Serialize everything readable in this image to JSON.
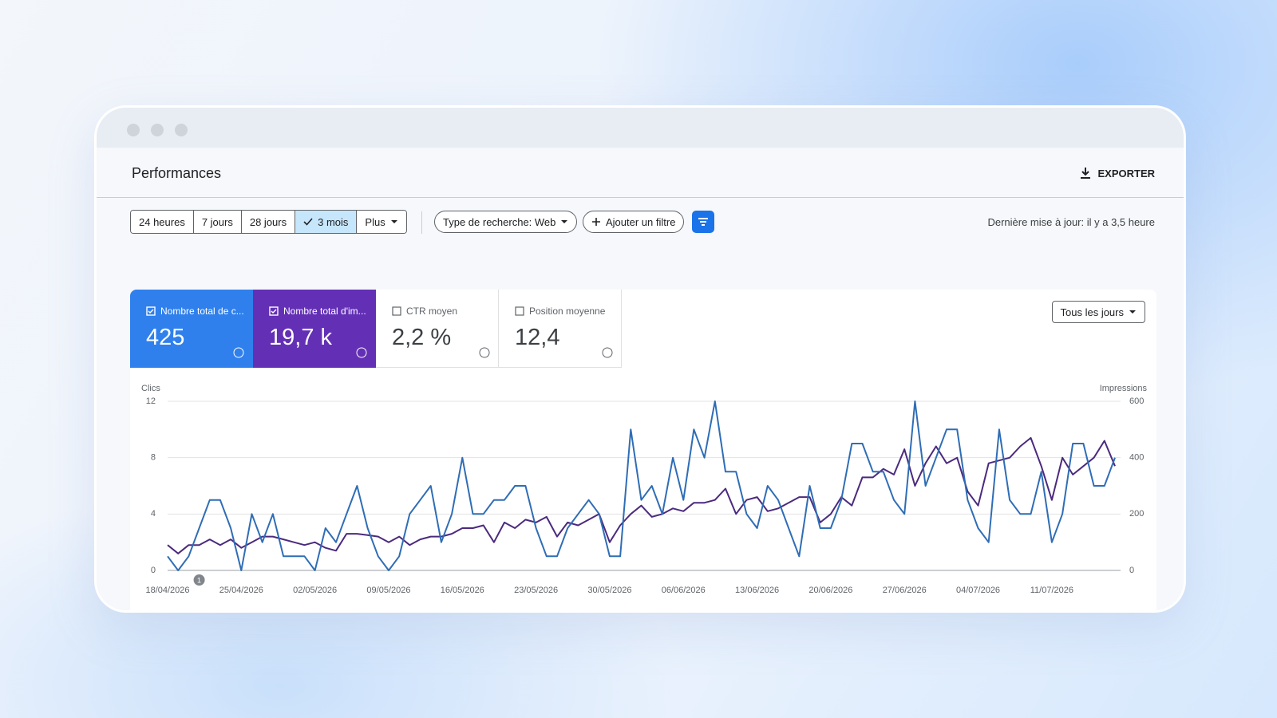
{
  "header": {
    "title": "Performances",
    "export": "EXPORTER"
  },
  "toolbar": {
    "ranges": [
      "24 heures",
      "7 jours",
      "28 jours",
      "3 mois",
      "Plus"
    ],
    "search_type": "Type de recherche: Web",
    "add_filter": "Ajouter un filtre",
    "last_update": "Dernière mise à jour: il y a 3,5 heure"
  },
  "metrics": [
    {
      "label": "Nombre total de c...",
      "value": "425"
    },
    {
      "label": "Nombre total d'im...",
      "value": "19,7 k"
    },
    {
      "label": "CTR moyen",
      "value": "2,2 %"
    },
    {
      "label": "Position moyenne",
      "value": "12,4"
    }
  ],
  "granularity": "Tous les jours",
  "chart_data": {
    "type": "line",
    "categories": [
      "18/04/2026",
      null,
      null,
      null,
      null,
      null,
      null,
      "25/04/2026",
      null,
      null,
      null,
      null,
      null,
      null,
      "02/05/2026",
      null,
      null,
      null,
      null,
      null,
      null,
      "09/05/2026",
      null,
      null,
      null,
      null,
      null,
      null,
      "16/05/2026",
      null,
      null,
      null,
      null,
      null,
      null,
      "23/05/2026",
      null,
      null,
      null,
      null,
      null,
      null,
      "30/05/2026",
      null,
      null,
      null,
      null,
      null,
      null,
      "06/06/2026",
      null,
      null,
      null,
      null,
      null,
      null,
      "13/06/2026",
      null,
      null,
      null,
      null,
      null,
      null,
      "20/06/2026",
      null,
      null,
      null,
      null,
      null,
      null,
      "27/06/2026",
      null,
      null,
      null,
      null,
      null,
      null,
      "04/07/2026",
      null,
      null,
      null,
      null,
      null,
      null,
      "11/07/2026",
      null,
      null,
      null,
      null,
      null,
      null
    ],
    "series": [
      {
        "name": "Clics",
        "color": "#2f6db5",
        "values": [
          1,
          0,
          1,
          3,
          5,
          5,
          3,
          0,
          4,
          2,
          4,
          1,
          1,
          1,
          0,
          3,
          2,
          4,
          6,
          3,
          1,
          0,
          1,
          4,
          5,
          6,
          2,
          4,
          8,
          4,
          4,
          5,
          5,
          6,
          6,
          3,
          1,
          1,
          3,
          4,
          5,
          4,
          1,
          1,
          10,
          5,
          6,
          4,
          8,
          5,
          10,
          8,
          12,
          7,
          7,
          4,
          3,
          6,
          5,
          3,
          1,
          6,
          3,
          3,
          5,
          9,
          9,
          7,
          7,
          5,
          4,
          12,
          6,
          8,
          10,
          10,
          5,
          3,
          2,
          10,
          5,
          4,
          4,
          7,
          2,
          4,
          9,
          9,
          6,
          6,
          8
        ]
      },
      {
        "name": "Impressions",
        "color": "#4b2a7e",
        "axis": "y2",
        "values": [
          90,
          60,
          90,
          90,
          110,
          90,
          110,
          80,
          100,
          120,
          120,
          110,
          100,
          90,
          100,
          80,
          70,
          130,
          130,
          125,
          120,
          100,
          120,
          90,
          110,
          120,
          120,
          130,
          150,
          150,
          160,
          100,
          170,
          150,
          180,
          170,
          190,
          120,
          170,
          160,
          180,
          200,
          100,
          160,
          200,
          230,
          190,
          200,
          220,
          210,
          240,
          240,
          250,
          290,
          200,
          250,
          260,
          210,
          220,
          240,
          260,
          260,
          170,
          200,
          260,
          230,
          330,
          330,
          360,
          340,
          430,
          300,
          380,
          440,
          380,
          400,
          280,
          230,
          380,
          390,
          400,
          440,
          470,
          370,
          250,
          400,
          340,
          370,
          400,
          460,
          370
        ]
      }
    ],
    "ylim": [
      0,
      12
    ],
    "yticks": [
      0,
      4,
      8,
      12
    ],
    "y2lim": [
      0,
      600
    ],
    "y2ticks": [
      0,
      200,
      400,
      600
    ],
    "grid": true,
    "annotations": [
      "1"
    ]
  }
}
